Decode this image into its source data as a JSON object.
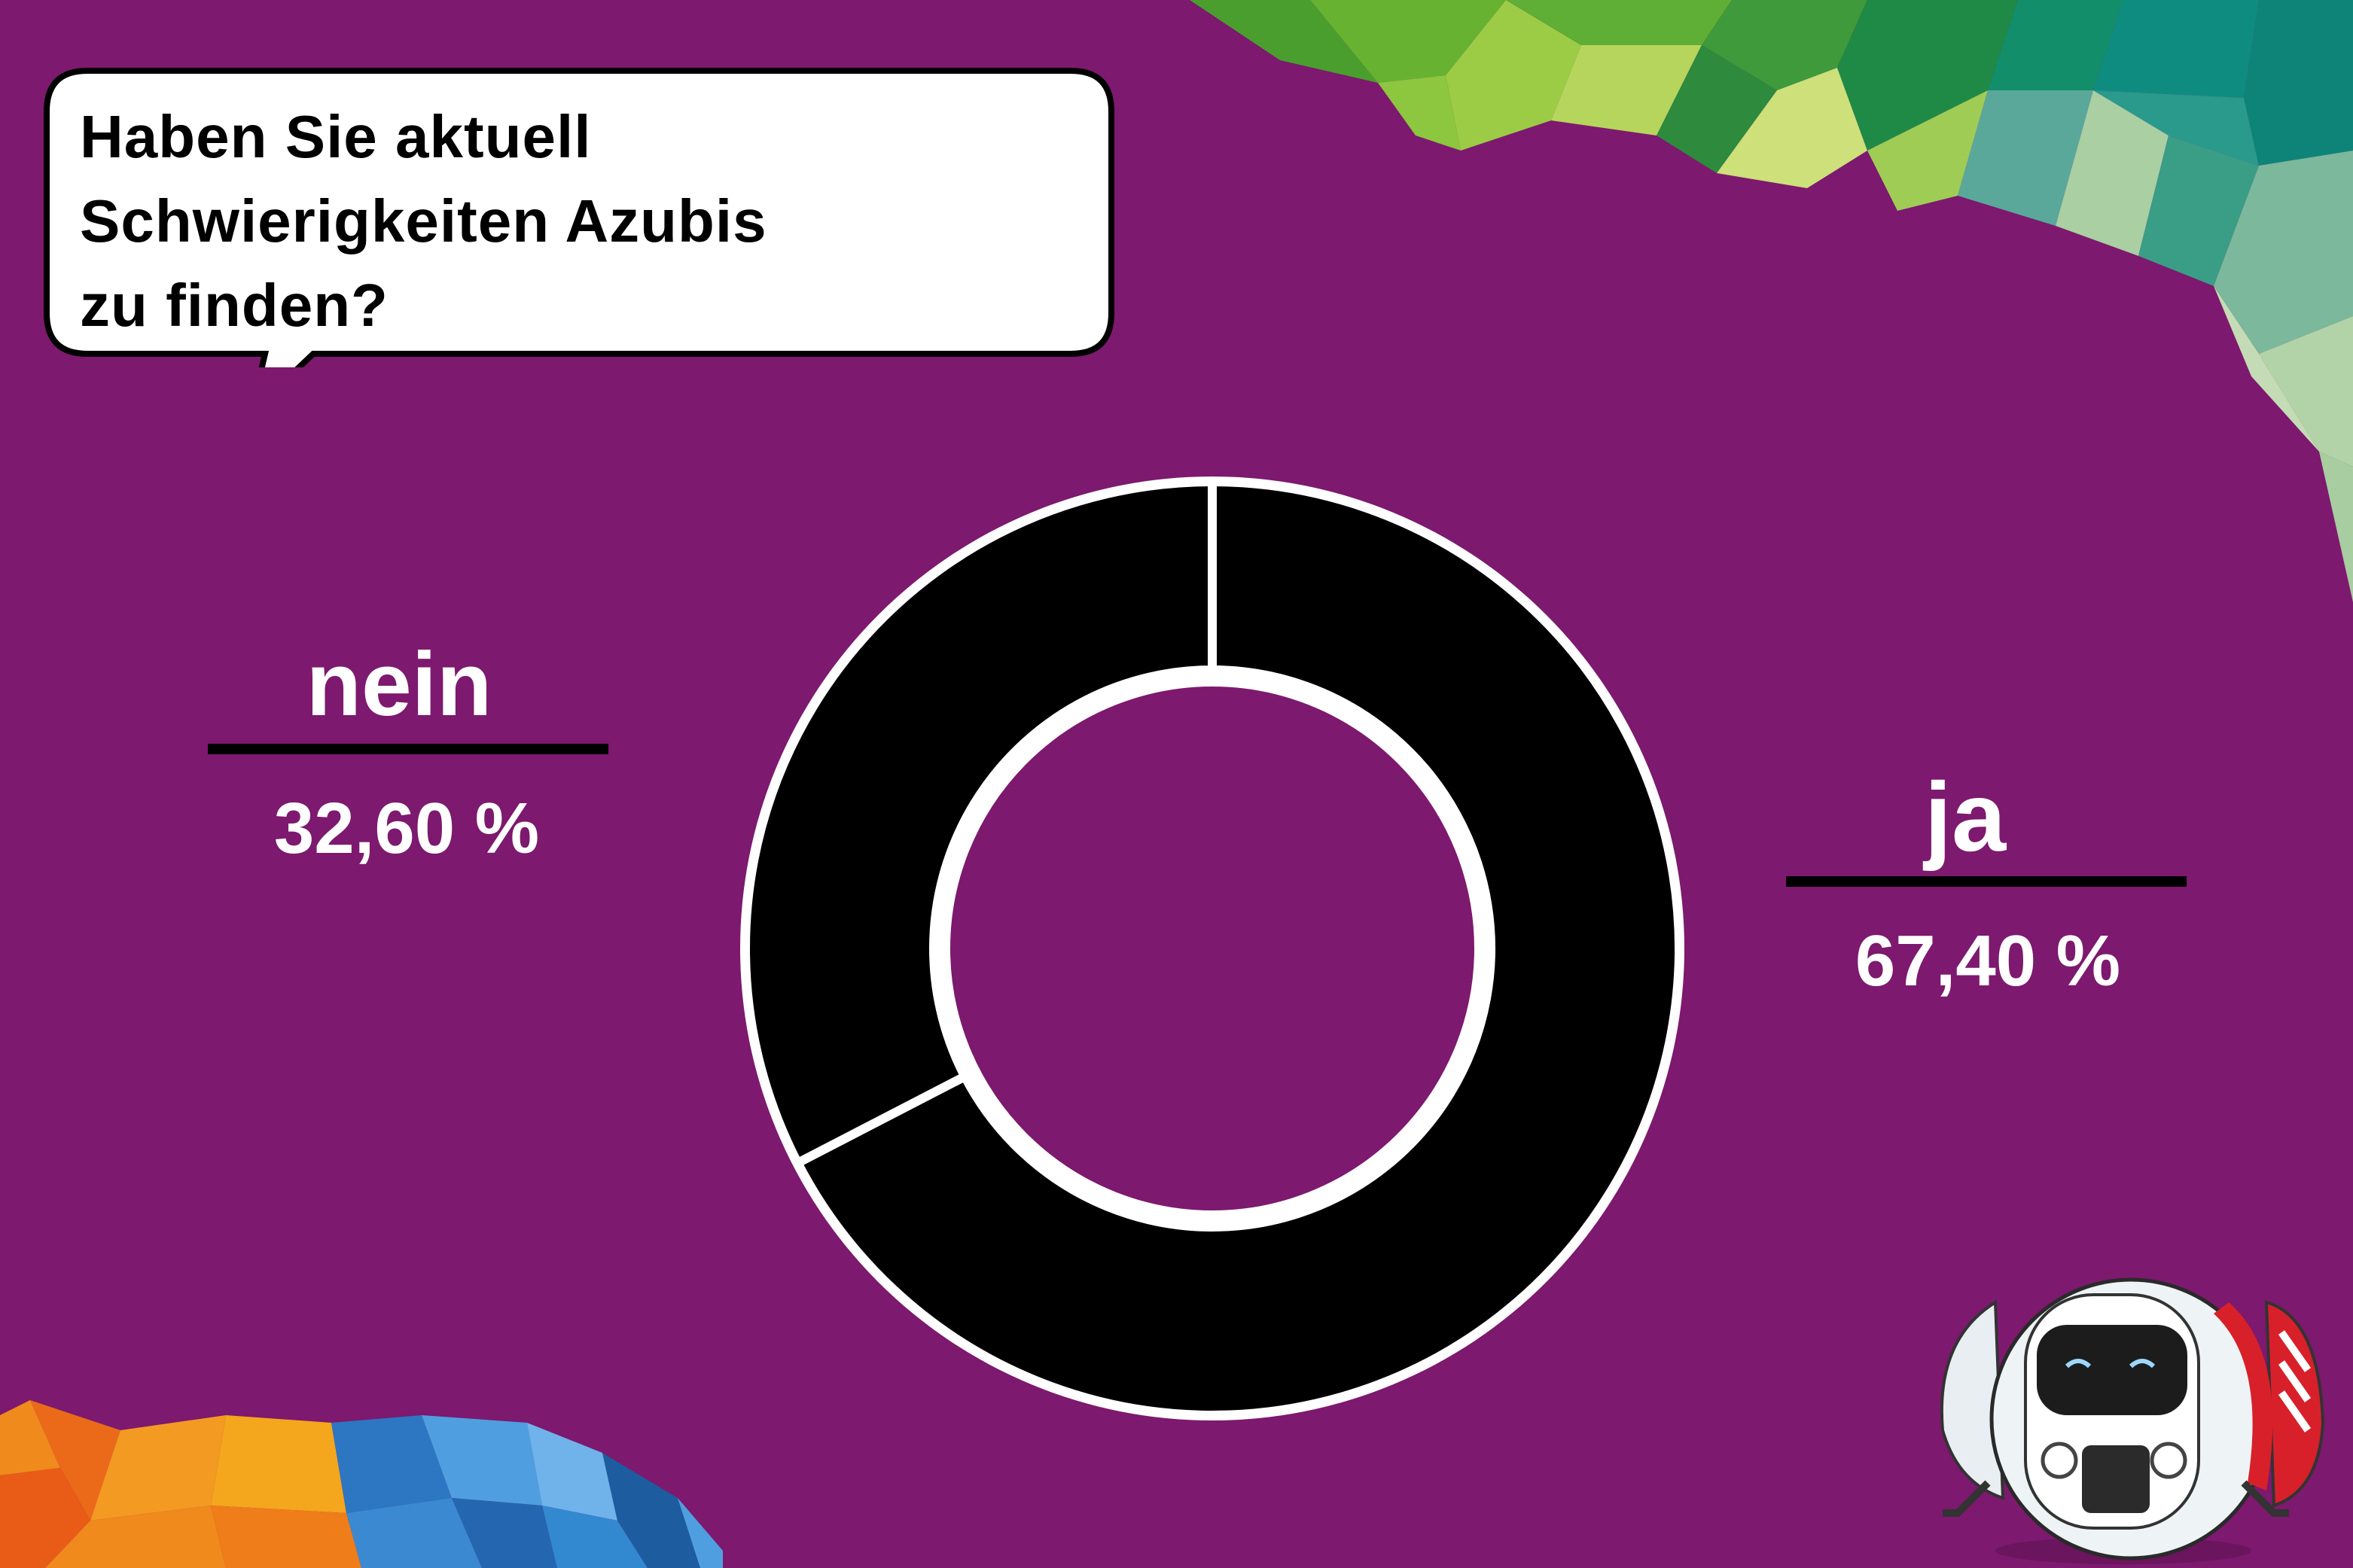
{
  "question": {
    "line1": "Haben Sie aktuell",
    "line2": "Schwierigkeiten Azubis",
    "line3": "zu finden?"
  },
  "labels": {
    "nein": {
      "name": "nein",
      "percent": "32,60 %"
    },
    "ja": {
      "name": "ja",
      "percent": "67,40 %"
    }
  },
  "colors": {
    "background": "#7d196e",
    "slice": "#000000",
    "outline": "#ffffff"
  },
  "chart_data": {
    "type": "pie",
    "variant": "donut",
    "categories": [
      "ja",
      "nein"
    ],
    "values": [
      67.4,
      32.6
    ],
    "value_labels": [
      "67,40 %",
      "32,60 %"
    ],
    "start": "12 o'clock, clockwise"
  }
}
